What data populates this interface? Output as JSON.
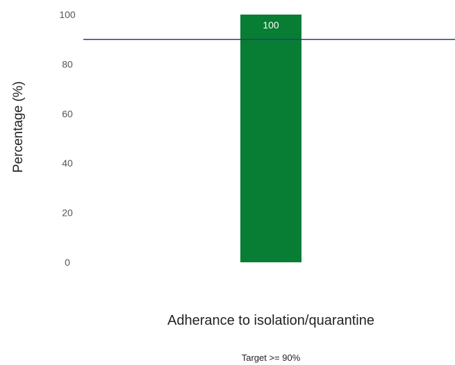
{
  "chart_data": {
    "type": "bar",
    "categories": [
      "Adherance to isolation/quarantine"
    ],
    "series": [
      {
        "values": [
          100
        ]
      }
    ],
    "data_labels": [
      "100"
    ],
    "ylabel": "Percentage (%)",
    "yticks": [
      0,
      20,
      40,
      60,
      80,
      100
    ],
    "ylim": [
      0,
      100
    ],
    "target_line": {
      "value": 90
    },
    "footnote": "Target >= 90%",
    "grid": false,
    "legend": "none"
  },
  "colors": {
    "bar": "#087d34",
    "target_line": "#2d3a78"
  }
}
